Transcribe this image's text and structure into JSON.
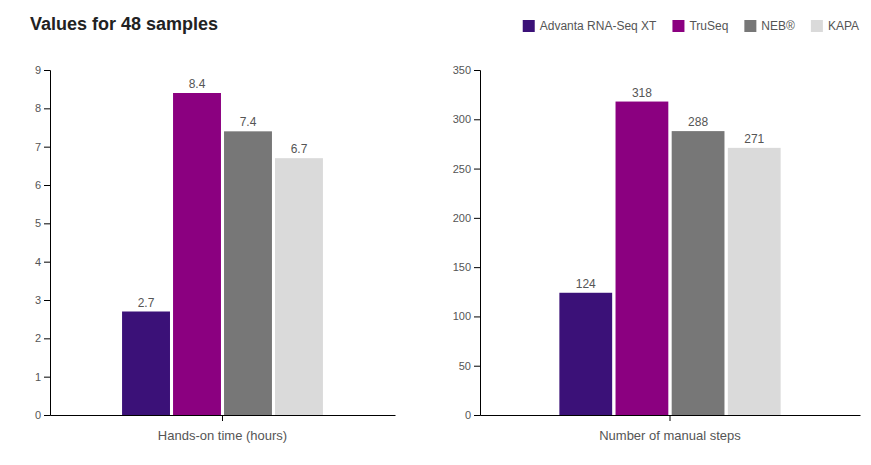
{
  "chart_data": [
    {
      "type": "bar",
      "title": "Values for 48 samples",
      "categories": [
        "Hands-on time (hours)"
      ],
      "series": [
        {
          "name": "Advanta RNA-Seq XT",
          "color": "#3B1178",
          "values": [
            2.7
          ]
        },
        {
          "name": "TruSeq",
          "color": "#8B0080",
          "values": [
            8.4
          ]
        },
        {
          "name": "NEB®",
          "color": "#777777",
          "values": [
            7.4
          ]
        },
        {
          "name": "KAPA",
          "color": "#DADADA",
          "values": [
            6.7
          ]
        }
      ],
      "ylim": [
        0,
        9
      ],
      "yticks": [
        0,
        1,
        2,
        3,
        4,
        5,
        6,
        7,
        8,
        9
      ],
      "grid": false,
      "data_labels": true,
      "legend": "top"
    },
    {
      "type": "bar",
      "categories": [
        "Number of manual steps"
      ],
      "series": [
        {
          "color": "#3B1178",
          "values": [
            124
          ]
        },
        {
          "color": "#8B0080",
          "values": [
            318
          ]
        },
        {
          "color": "#777777",
          "values": [
            288
          ]
        },
        {
          "color": "#DADADA",
          "values": [
            271
          ]
        }
      ],
      "ylim": [
        0,
        350
      ],
      "yticks": [
        0,
        50,
        100,
        150,
        200,
        250,
        300,
        350
      ],
      "grid": false,
      "data_labels": true
    }
  ]
}
